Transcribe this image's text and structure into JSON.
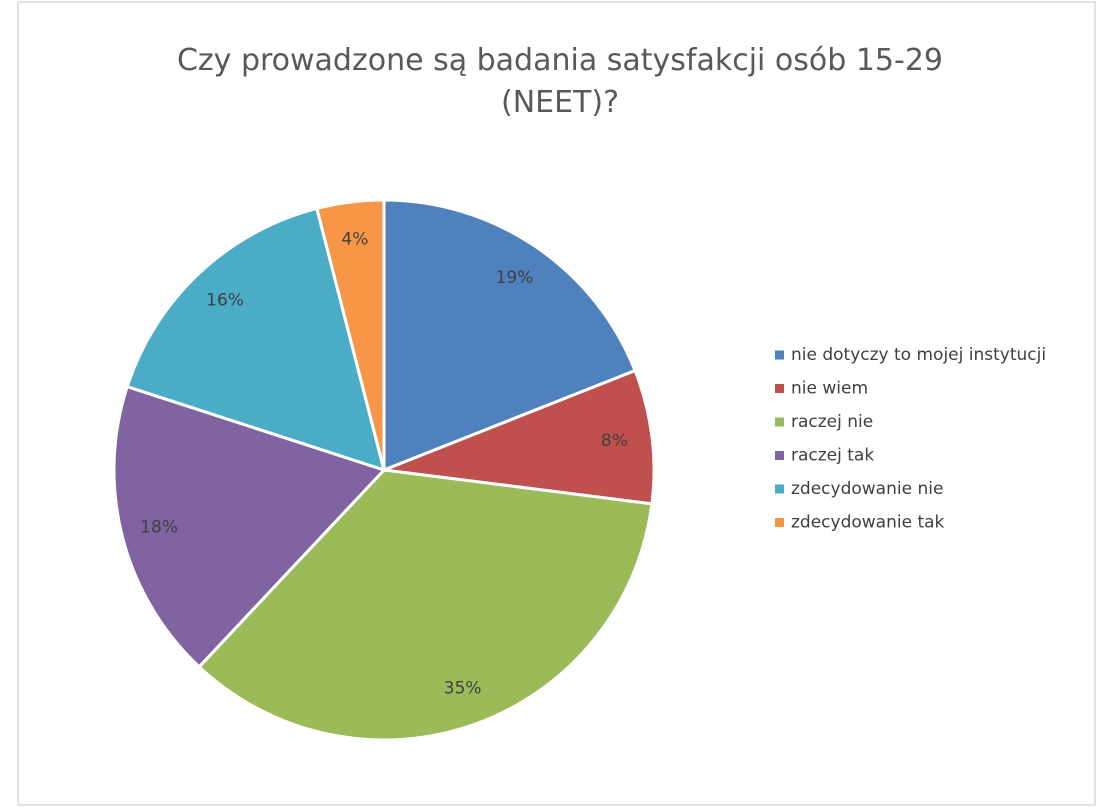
{
  "chart_data": {
    "type": "pie",
    "title": "Czy prowadzone są badania satysfakcji osób 15-29 (NEET)?",
    "categories": [
      "nie dotyczy to mojej instytucji",
      "nie wiem",
      "raczej nie",
      "raczej tak",
      "zdecydowanie nie",
      "zdecydowanie tak"
    ],
    "values": [
      19,
      8,
      35,
      18,
      16,
      4
    ],
    "value_labels": [
      "19%",
      "8%",
      "35%",
      "18%",
      "16%",
      "4%"
    ],
    "colors": [
      "#4f81bd",
      "#c0504d",
      "#9bbb59",
      "#8064a2",
      "#4bacc6",
      "#f79646"
    ],
    "legend": "right"
  }
}
